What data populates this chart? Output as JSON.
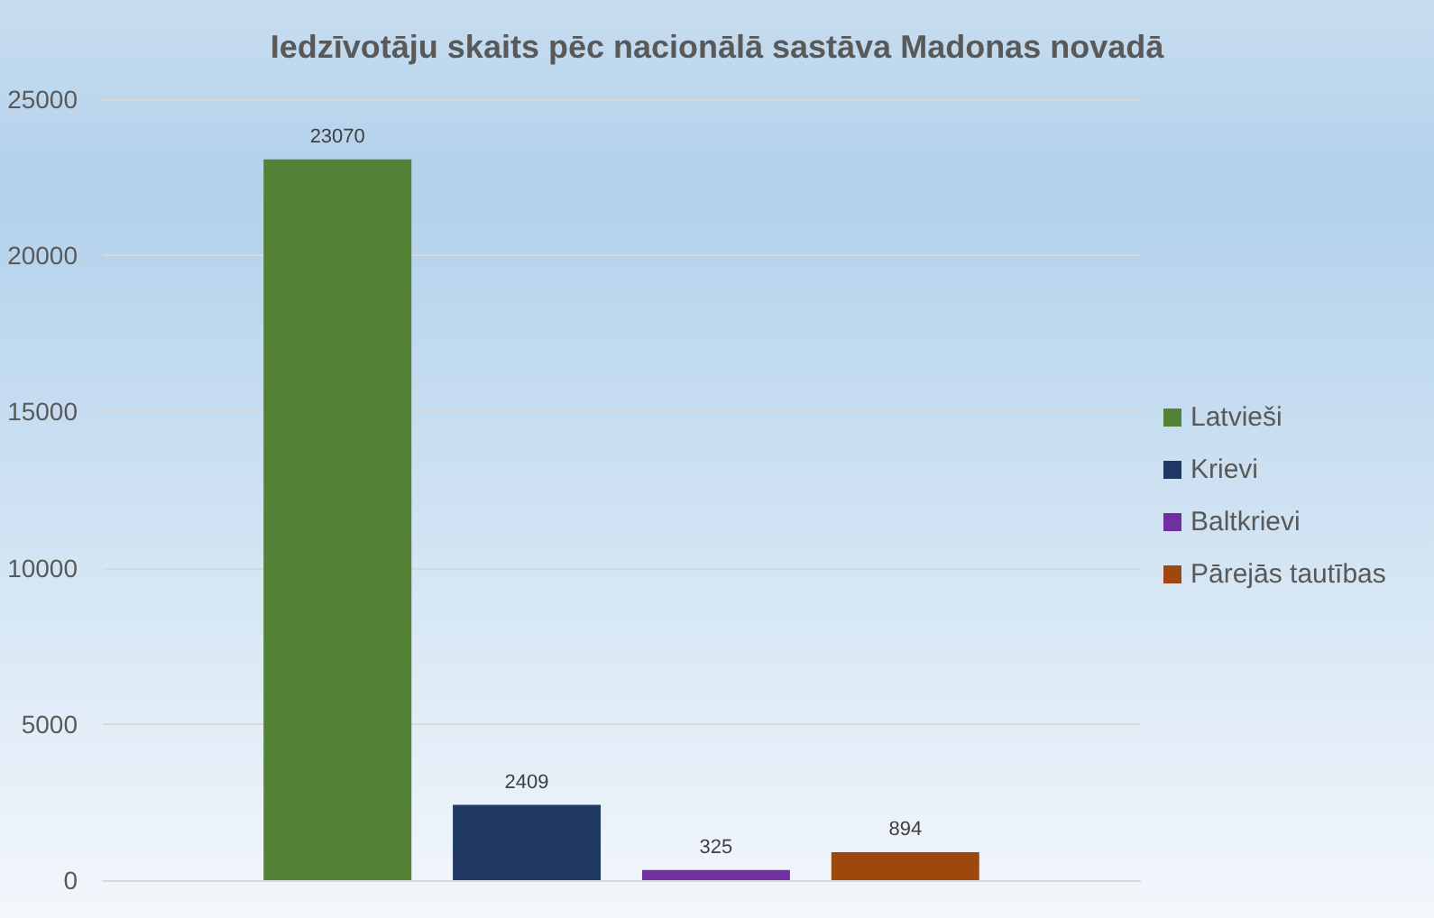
{
  "chart_data": {
    "type": "bar",
    "title": "Iedzīvotāju skaits pēc nacionālā sastāva Madonas novadā",
    "categories": [
      null
    ],
    "series": [
      {
        "name": "Latvieši",
        "color": "#538135",
        "values": [
          23070
        ]
      },
      {
        "name": "Krievi",
        "color": "#203864",
        "values": [
          2409
        ]
      },
      {
        "name": "Baltkrievi",
        "color": "#7030a0",
        "values": [
          325
        ]
      },
      {
        "name": "Pārejās tautības",
        "color": "#9e480e",
        "values": [
          894
        ]
      }
    ],
    "ylim": [
      0,
      25000
    ],
    "yticks": [
      0,
      5000,
      10000,
      15000,
      20000,
      25000
    ],
    "grid": "y",
    "legend": "right",
    "data_labels": true
  }
}
